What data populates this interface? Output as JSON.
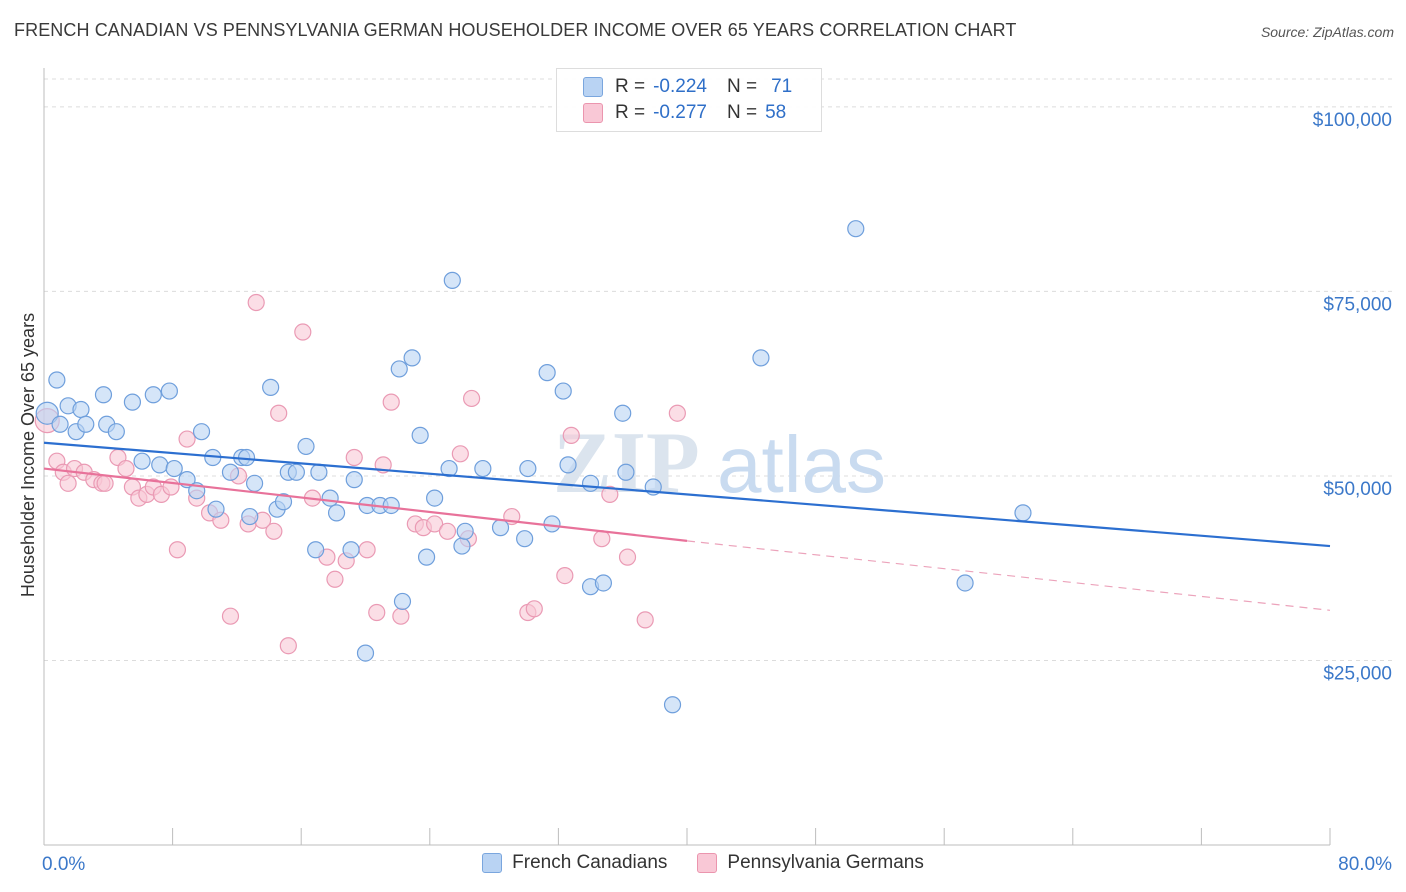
{
  "header": {
    "title": "FRENCH CANADIAN VS PENNSYLVANIA GERMAN HOUSEHOLDER INCOME OVER 65 YEARS CORRELATION CHART",
    "source": "Source: ZipAtlas.com"
  },
  "legend": {
    "items": [
      {
        "r_label": "R =",
        "r_value": "-0.224",
        "n_label": "N =",
        "n_value": "71"
      },
      {
        "r_label": "R =",
        "r_value": "-0.277",
        "n_label": "N =",
        "n_value": "58"
      }
    ]
  },
  "bottom_legend": {
    "items": [
      {
        "label": "French Canadians"
      },
      {
        "label": "Pennsylvania Germans"
      }
    ]
  },
  "watermark": {
    "zip": "ZIP",
    "atlas": "atlas"
  },
  "chart_data": {
    "type": "scatter",
    "title": "FRENCH CANADIAN VS PENNSYLVANIA GERMAN HOUSEHOLDER INCOME OVER 65 YEARS CORRELATION CHART",
    "xlabel": "",
    "ylabel": "Householder Income Over 65 years",
    "xlim": [
      0,
      80
    ],
    "ylim": [
      0,
      105000
    ],
    "x_tick_labels": [
      "0.0%",
      "80.0%"
    ],
    "y_ticks": [
      25000,
      50000,
      75000,
      100000
    ],
    "y_tick_labels": [
      "$25,000",
      "$50,000",
      "$75,000",
      "$100,000"
    ],
    "grid": true,
    "legend_position": "top-center",
    "colors": {
      "blue": "#4a86d8",
      "blue_fill": "#b9d3f3",
      "pink": "#e8729a",
      "pink_fill": "#f9c8d6",
      "axis_text": "#3b78c9"
    },
    "series": [
      {
        "name": "French Canadians",
        "color": "#4a86d8",
        "trend": {
          "x0": 0,
          "y0": 54500,
          "x1": 80,
          "y1": 40500
        },
        "points": [
          [
            0.2,
            58500
          ],
          [
            0.8,
            63000
          ],
          [
            1.5,
            59500
          ],
          [
            2.0,
            56000
          ],
          [
            2.3,
            59000
          ],
          [
            2.6,
            57000
          ],
          [
            3.7,
            61000
          ],
          [
            3.9,
            57000
          ],
          [
            4.5,
            56000
          ],
          [
            5.5,
            60000
          ],
          [
            6.1,
            52000
          ],
          [
            6.8,
            61000
          ],
          [
            7.2,
            51500
          ],
          [
            7.8,
            61500
          ],
          [
            8.1,
            51000
          ],
          [
            8.9,
            49500
          ],
          [
            9.5,
            48000
          ],
          [
            9.8,
            56000
          ],
          [
            10.5,
            52500
          ],
          [
            10.7,
            45500
          ],
          [
            11.6,
            50500
          ],
          [
            12.3,
            52500
          ],
          [
            12.6,
            52500
          ],
          [
            12.8,
            44500
          ],
          [
            13.1,
            49000
          ],
          [
            14.1,
            62000
          ],
          [
            14.5,
            45500
          ],
          [
            14.9,
            46500
          ],
          [
            15.2,
            50500
          ],
          [
            15.7,
            50500
          ],
          [
            16.3,
            54000
          ],
          [
            16.9,
            40000
          ],
          [
            17.1,
            50500
          ],
          [
            17.8,
            47000
          ],
          [
            18.2,
            45000
          ],
          [
            19.1,
            40000
          ],
          [
            19.3,
            49500
          ],
          [
            20.1,
            46000
          ],
          [
            20.9,
            46000
          ],
          [
            21.6,
            46000
          ],
          [
            22.1,
            64500
          ],
          [
            22.3,
            33000
          ],
          [
            22.9,
            66000
          ],
          [
            23.4,
            55500
          ],
          [
            23.8,
            39000
          ],
          [
            24.3,
            47000
          ],
          [
            25.2,
            51000
          ],
          [
            25.4,
            76500
          ],
          [
            26.0,
            40500
          ],
          [
            26.2,
            42500
          ],
          [
            20.0,
            26000
          ],
          [
            27.3,
            51000
          ],
          [
            28.4,
            43000
          ],
          [
            29.9,
            41500
          ],
          [
            30.1,
            51000
          ],
          [
            31.3,
            64000
          ],
          [
            31.6,
            43500
          ],
          [
            32.3,
            61500
          ],
          [
            32.6,
            51500
          ],
          [
            34.0,
            35000
          ],
          [
            34.8,
            35500
          ],
          [
            34.0,
            49000
          ],
          [
            36.0,
            58500
          ],
          [
            36.2,
            50500
          ],
          [
            37.9,
            48500
          ],
          [
            39.1,
            19000
          ],
          [
            44.6,
            66000
          ],
          [
            50.5,
            83500
          ],
          [
            57.3,
            35500
          ],
          [
            60.9,
            45000
          ],
          [
            1.0,
            57000
          ]
        ],
        "sizes": [
          22,
          16,
          16,
          16,
          16,
          16,
          16,
          16,
          16,
          16,
          16,
          16,
          16,
          16,
          16,
          16,
          16,
          16,
          16,
          16,
          16,
          16,
          16,
          16,
          16,
          16,
          16,
          16,
          16,
          16,
          16,
          16,
          16,
          16,
          16,
          16,
          16,
          16,
          16,
          16,
          16,
          16,
          16,
          16,
          16,
          16,
          16,
          16,
          16,
          16,
          16,
          16,
          16,
          16,
          16,
          16,
          16,
          16,
          16,
          16,
          16,
          16,
          16,
          16,
          16,
          16,
          16,
          16,
          16,
          16,
          16
        ]
      },
      {
        "name": "Pennsylvania Germans",
        "color": "#e8729a",
        "trend": {
          "x0": 0,
          "y0": 51000,
          "x1": 40,
          "y1": 41200,
          "dash_x1": 80,
          "dash_y1": 31800
        },
        "points": [
          [
            0.2,
            57500
          ],
          [
            0.8,
            52000
          ],
          [
            1.2,
            50500
          ],
          [
            1.5,
            49000
          ],
          [
            1.9,
            51000
          ],
          [
            2.5,
            50500
          ],
          [
            3.1,
            49500
          ],
          [
            3.6,
            49000
          ],
          [
            3.8,
            49000
          ],
          [
            4.6,
            52500
          ],
          [
            5.1,
            51000
          ],
          [
            5.5,
            48500
          ],
          [
            5.9,
            47000
          ],
          [
            6.4,
            47500
          ],
          [
            6.8,
            48500
          ],
          [
            7.3,
            47500
          ],
          [
            7.9,
            48500
          ],
          [
            8.3,
            40000
          ],
          [
            8.9,
            55000
          ],
          [
            9.5,
            47000
          ],
          [
            10.3,
            45000
          ],
          [
            11.0,
            44000
          ],
          [
            11.6,
            31000
          ],
          [
            12.1,
            50000
          ],
          [
            12.7,
            43500
          ],
          [
            13.2,
            73500
          ],
          [
            13.6,
            44000
          ],
          [
            14.3,
            42500
          ],
          [
            14.6,
            58500
          ],
          [
            15.2,
            27000
          ],
          [
            16.1,
            69500
          ],
          [
            16.7,
            47000
          ],
          [
            17.6,
            39000
          ],
          [
            18.1,
            36000
          ],
          [
            18.8,
            38500
          ],
          [
            19.3,
            52500
          ],
          [
            20.1,
            40000
          ],
          [
            20.7,
            31500
          ],
          [
            21.1,
            51500
          ],
          [
            21.6,
            60000
          ],
          [
            22.2,
            31000
          ],
          [
            23.1,
            43500
          ],
          [
            23.6,
            43000
          ],
          [
            24.3,
            43500
          ],
          [
            25.1,
            42500
          ],
          [
            25.9,
            53000
          ],
          [
            26.6,
            60500
          ],
          [
            26.4,
            41500
          ],
          [
            29.1,
            44500
          ],
          [
            30.1,
            31500
          ],
          [
            30.5,
            32000
          ],
          [
            32.4,
            36500
          ],
          [
            32.8,
            55500
          ],
          [
            34.7,
            41500
          ],
          [
            35.2,
            47500
          ],
          [
            36.3,
            39000
          ],
          [
            37.4,
            30500
          ],
          [
            39.4,
            58500
          ]
        ],
        "sizes": [
          24,
          16,
          16,
          16,
          16,
          16,
          16,
          16,
          16,
          16,
          16,
          16,
          16,
          16,
          16,
          16,
          16,
          16,
          16,
          16,
          16,
          16,
          16,
          16,
          16,
          16,
          16,
          16,
          16,
          16,
          16,
          16,
          16,
          16,
          16,
          16,
          16,
          16,
          16,
          16,
          16,
          16,
          16,
          16,
          16,
          16,
          16,
          16,
          16,
          16,
          16,
          16,
          16,
          16,
          16,
          16,
          16,
          16
        ]
      }
    ]
  }
}
